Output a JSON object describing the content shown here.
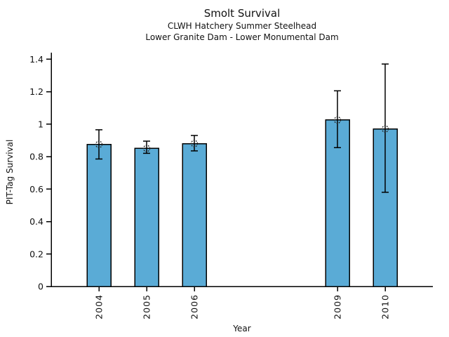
{
  "chart_data": {
    "type": "bar",
    "title": "Smolt Survival",
    "subtitle1": "CLWH Hatchery Summer Steelhead",
    "subtitle2": "Lower Granite Dam - Lower Monumental Dam",
    "xlabel": "Year",
    "ylabel": "PIT-Tag Survival",
    "categories": [
      "2004",
      "2005",
      "2006",
      "2009",
      "2010"
    ],
    "x": [
      2004,
      2005,
      2006,
      2009,
      2010
    ],
    "values": [
      0.875,
      0.85,
      0.88,
      1.025,
      0.97
    ],
    "error_low": [
      0.785,
      0.82,
      0.835,
      0.855,
      0.58
    ],
    "error_high": [
      0.965,
      0.895,
      0.93,
      1.205,
      1.37
    ],
    "xlim": [
      2003,
      2011
    ],
    "ylim": [
      0,
      1.44
    ],
    "yticks": [
      0,
      0.2,
      0.4,
      0.6,
      0.8,
      1,
      1.2,
      1.4
    ],
    "ytick_labels": [
      "0",
      "0.2",
      "0.4",
      "0.6",
      "0.8",
      "1",
      "1.2",
      "1.4"
    ],
    "grid": false,
    "legend": "none",
    "marker": "open-dashed-circle",
    "bar_color": "#5AABD6",
    "bar_edge_color": "#000000",
    "error_bar_color": "#000000",
    "axis_color": "#000000",
    "background_color": "#ffffff"
  }
}
